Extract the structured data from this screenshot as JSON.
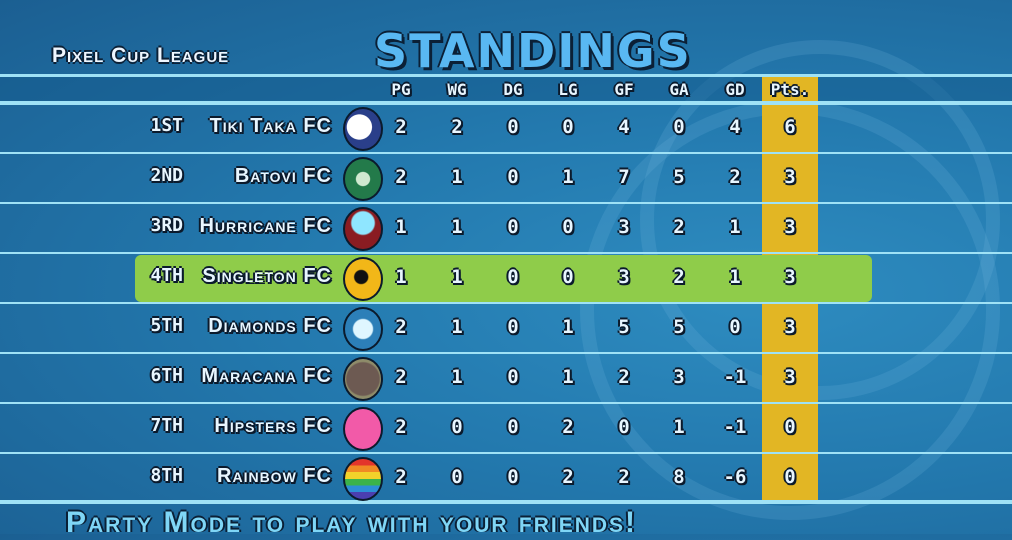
{
  "league": "Pixel Cup League",
  "title": "Standings",
  "columns": [
    "PG",
    "WG",
    "DG",
    "LG",
    "GF",
    "GA",
    "GD",
    "Pts."
  ],
  "highlight_color": "#8fcc4a",
  "points_color": "#e2b624",
  "rows": [
    {
      "rank": "1st",
      "team": "Tiki Taka FC",
      "badge": "soccer-ball",
      "stats": [
        "2",
        "2",
        "0",
        "0",
        "4",
        "0",
        "4",
        "6"
      ]
    },
    {
      "rank": "2nd",
      "team": "Batovi FC",
      "badge": "green-crest",
      "stats": [
        "2",
        "1",
        "0",
        "1",
        "7",
        "5",
        "2",
        "3"
      ]
    },
    {
      "rank": "3rd",
      "team": "Hurricane FC",
      "badge": "hurricane",
      "stats": [
        "1",
        "1",
        "0",
        "0",
        "3",
        "2",
        "1",
        "3"
      ]
    },
    {
      "rank": "4th",
      "team": "Singleton FC",
      "badge": "yellow-dot",
      "stats": [
        "1",
        "1",
        "0",
        "0",
        "3",
        "2",
        "1",
        "3"
      ],
      "highlighted": true
    },
    {
      "rank": "5th",
      "team": "Diamonds FC",
      "badge": "diamond",
      "stats": [
        "2",
        "1",
        "0",
        "1",
        "5",
        "5",
        "0",
        "3"
      ]
    },
    {
      "rank": "6th",
      "team": "Maracana FC",
      "badge": "stone",
      "stats": [
        "2",
        "1",
        "0",
        "1",
        "2",
        "3",
        "-1",
        "3"
      ]
    },
    {
      "rank": "7th",
      "team": "Hipsters FC",
      "badge": "pink-glasses",
      "stats": [
        "2",
        "0",
        "0",
        "2",
        "0",
        "1",
        "-1",
        "0"
      ]
    },
    {
      "rank": "8th",
      "team": "Rainbow FC",
      "badge": "rainbow",
      "stats": [
        "2",
        "0",
        "0",
        "2",
        "2",
        "8",
        "-6",
        "0"
      ]
    }
  ],
  "footer": "Party Mode to play with your friends!"
}
